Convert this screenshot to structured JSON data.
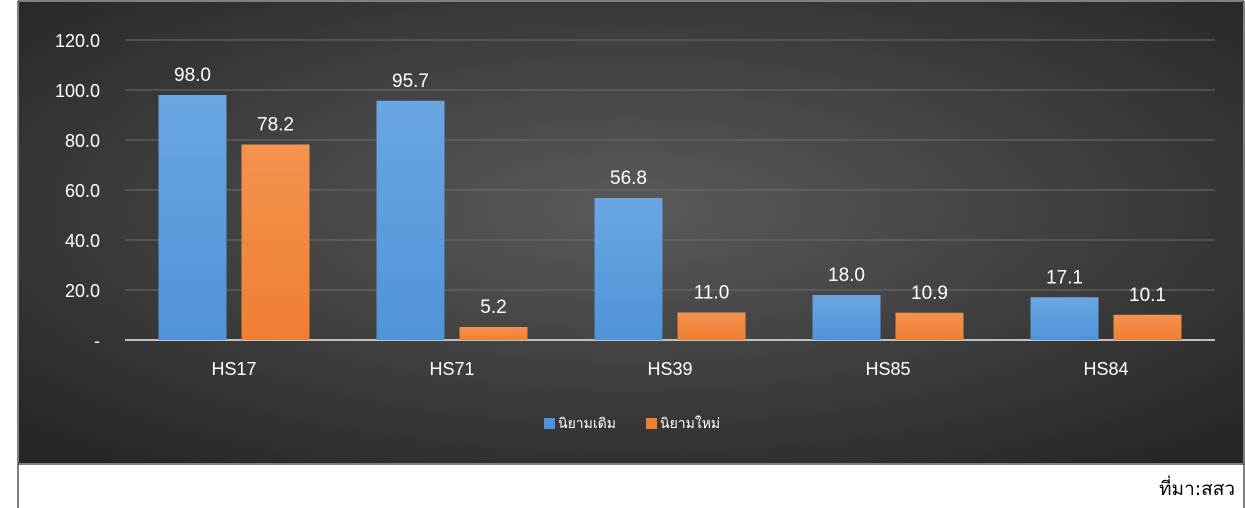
{
  "colors": {
    "series_old": "#4f94d8",
    "series_new": "#ef7f33",
    "background_center": "#5a5a5a",
    "background_edge": "#262626"
  },
  "chart_data": {
    "type": "bar",
    "categories": [
      "HS17",
      "HS71",
      "HS39",
      "HS85",
      "HS84"
    ],
    "series": [
      {
        "name": "นิยามเดิม",
        "values": [
          98.0,
          95.7,
          56.8,
          18.0,
          17.1
        ]
      },
      {
        "name": "นิยามใหม่",
        "values": [
          78.2,
          5.2,
          11.0,
          10.9,
          10.1
        ]
      }
    ],
    "value_labels": [
      [
        "98.0",
        "95.7",
        "56.8",
        "18.0",
        "17.1"
      ],
      [
        "78.2",
        "5.2",
        "11.0",
        "10.9",
        "10.1"
      ]
    ],
    "y_ticks": [
      "-",
      "20.0",
      "40.0",
      "60.0",
      "80.0",
      "100.0",
      "120.0"
    ],
    "ylim": [
      0,
      120
    ],
    "grid": true,
    "legend_position": "bottom-center"
  },
  "source": "ที่มา:สสว"
}
